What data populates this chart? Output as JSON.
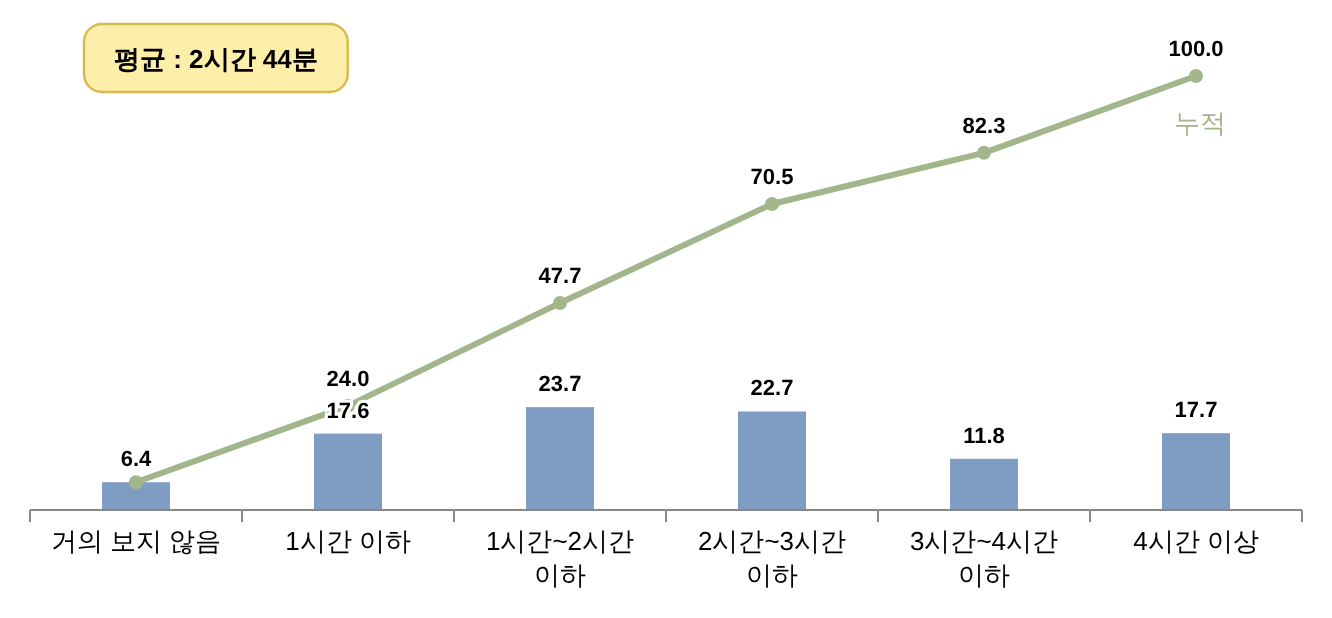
{
  "chart_data": {
    "type": "bar",
    "categories": [
      "거의 보지 않음",
      "1시간 이하",
      "1시간~2시간 이하",
      "2시간~3시간 이하",
      "3시간~4시간 이하",
      "4시간 이상"
    ],
    "series": [
      {
        "color": "#7f9cc2",
        "values": [
          6.4,
          17.6,
          23.7,
          22.7,
          11.8,
          17.7
        ],
        "value_labels": [
          "6.4",
          "17.6",
          "23.7",
          "22.7",
          "11.8",
          "17.7"
        ]
      },
      {
        "type": "line",
        "name": "누적",
        "color": "#a3b58b",
        "marker": "circle",
        "values": [
          6.4,
          24.0,
          47.7,
          70.5,
          82.3,
          100.0
        ],
        "value_labels": [
          null,
          "24.0",
          "47.7",
          "70.5",
          "82.3",
          "100.0"
        ]
      }
    ],
    "annotations": [
      "평균 : 2시간 44분"
    ],
    "grid": false
  }
}
